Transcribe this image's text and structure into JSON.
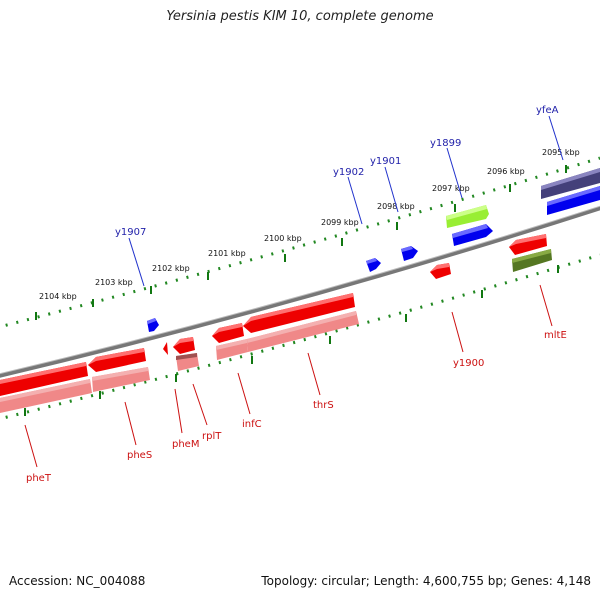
{
  "title": "Yersinia pestis KIM 10, complete genome",
  "footer": {
    "accession": "Accession: NC_004088",
    "summary": "Topology: circular; Length: 4,600,755 bp; Genes: 4,148"
  },
  "colors": {
    "backbone": "#777777",
    "ruler": "#228822",
    "forward_gene": "#0000ee",
    "reverse_gene": "#ee0000",
    "reverse_gene_light": "#f08888",
    "label_forward": "#2222aa",
    "label_reverse": "#cc1111",
    "purple": "#44407a",
    "yellowgreen": "#99ee33",
    "olive": "#557722"
  },
  "ruler_labels": [
    "2095 kbp",
    "2096 kbp",
    "2097 kbp",
    "2098 kbp",
    "2099 kbp",
    "2100 kbp",
    "2101 kbp",
    "2102 kbp",
    "2103 kbp",
    "2104 kbp"
  ],
  "forward_labels": [
    "yfeA",
    "y1899",
    "y1901",
    "y1902",
    "y1907"
  ],
  "reverse_labels": [
    "mltE",
    "y1900",
    "thrS",
    "infC",
    "rplT",
    "pheM",
    "pheS",
    "pheT"
  ]
}
